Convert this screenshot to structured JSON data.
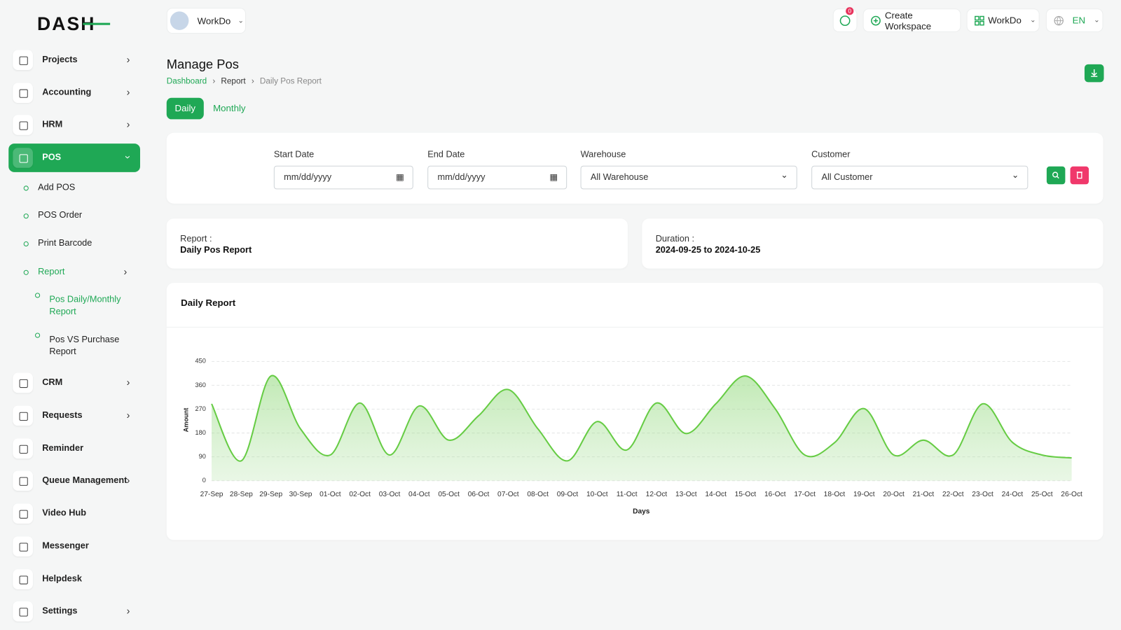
{
  "brand": "DASH",
  "header": {
    "workspace": "WorkDo",
    "notifications": 0,
    "create_workspace": "Create Workspace",
    "user": "WorkDo",
    "language": "EN"
  },
  "sidebar": {
    "items": [
      "Projects",
      "Accounting",
      "HRM",
      "POS",
      "Add POS",
      "POS Order",
      "Print Barcode",
      "Report",
      "Pos Daily/Monthly Report",
      "Pos VS Purchase Report",
      "CRM",
      "Requests",
      "Reminder",
      "Queue Management",
      "Video Hub",
      "Messenger",
      "Helpdesk",
      "Settings"
    ]
  },
  "page": {
    "title": "Manage Pos",
    "breadcrumb": [
      "Dashboard",
      "Report",
      "Daily Pos Report"
    ],
    "tabs": [
      "Daily",
      "Monthly"
    ]
  },
  "filters": {
    "labels": [
      "Start Date",
      "End Date",
      "Warehouse",
      "Customer"
    ],
    "values": [
      "mm/dd/yyyy",
      "mm/dd/yyyy",
      "All Warehouse",
      "All Customer"
    ]
  },
  "info": {
    "report_label": "Report :",
    "report": "Daily Pos Report",
    "duration_label": "Duration :",
    "duration": "2024-09-25 to 2024-10-25"
  },
  "chart_data": {
    "type": "area",
    "title": "Daily Report",
    "x_label": "Days",
    "y_label": "Amount",
    "categories": [
      "27-Sep",
      "28-Sep",
      "29-Sep",
      "30-Sep",
      "01-Oct",
      "02-Oct",
      "03-Oct",
      "04-Oct",
      "05-Oct",
      "06-Oct",
      "07-Oct",
      "08-Oct",
      "09-Oct",
      "10-Oct",
      "11-Oct",
      "12-Oct",
      "13-Oct",
      "14-Oct",
      "15-Oct",
      "16-Oct",
      "17-Oct",
      "18-Oct",
      "19-Oct",
      "20-Oct",
      "21-Oct",
      "22-Oct",
      "23-Oct",
      "24-Oct",
      "25-Oct",
      "26-Oct"
    ],
    "values": [
      290,
      75,
      395,
      195,
      97,
      293,
      97,
      282,
      153,
      245,
      344,
      196,
      75,
      223,
      116,
      293,
      178,
      290,
      395,
      272,
      97,
      143,
      272,
      97,
      153,
      97,
      290,
      145,
      97,
      86
    ],
    "color": "#66cc44",
    "ylim": [
      0,
      450
    ],
    "yticks": [
      0,
      90,
      180,
      270,
      360,
      450
    ],
    "grid": true
  }
}
